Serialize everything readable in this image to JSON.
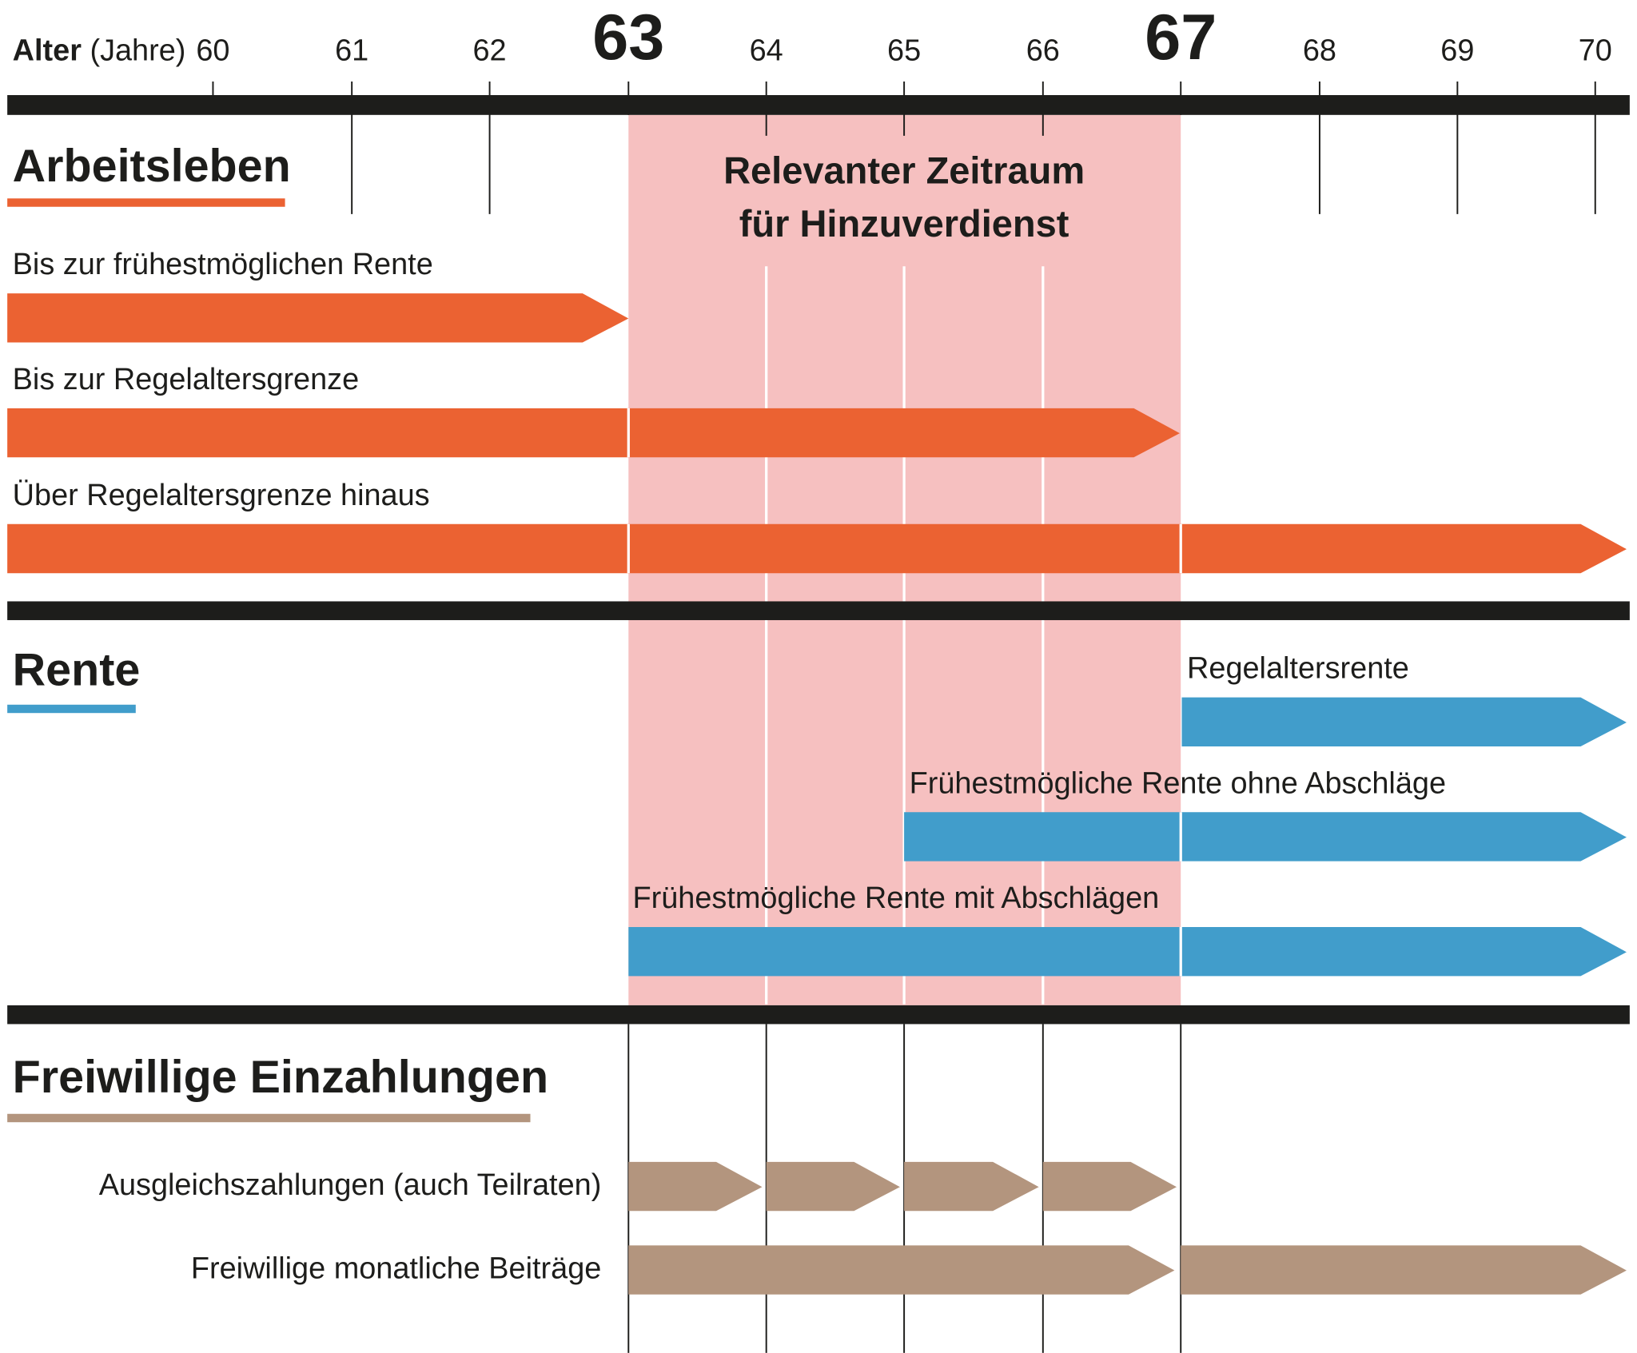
{
  "axis": {
    "label": "Alter",
    "unit": "(Jahre)",
    "ticks": [
      "60",
      "61",
      "62",
      "63",
      "64",
      "65",
      "66",
      "67",
      "68",
      "69",
      "70"
    ]
  },
  "highlight": {
    "lines": [
      "Relevanter Zeitraum",
      "für Hinzuverdienst"
    ]
  },
  "sections": [
    {
      "title": "Arbeitsleben",
      "rows": [
        "Bis zur frühestmöglichen Rente",
        "Bis zur Regelaltersgrenze",
        "Über Regelaltersgrenze hinaus"
      ]
    },
    {
      "title": "Rente",
      "rows": [
        "Regelaltersrente",
        "Frühestmögliche Rente ohne Abschläge",
        "Frühestmögliche Rente mit Abschlägen"
      ]
    },
    {
      "title": "Freiwillige Einzahlungen",
      "rows": [
        "Ausgleichszahlungen (auch Teilraten)",
        "Freiwillige monatliche Beiträge"
      ]
    }
  ]
}
